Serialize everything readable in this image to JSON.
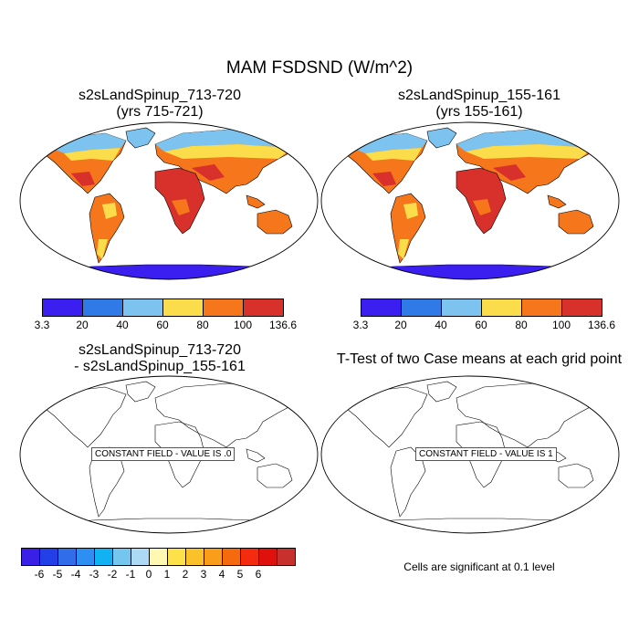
{
  "figure": {
    "title": "MAM FSDSND (W/m^2)"
  },
  "panels": [
    {
      "title_line1": "s2sLandSpinup_713-720",
      "title_line2": "(yrs 715-721)"
    },
    {
      "title_line1": "s2sLandSpinup_155-161",
      "title_line2": "(yrs 155-161)"
    },
    {
      "title_line1": "s2sLandSpinup_713-720",
      "title_line2": "- s2sLandSpinup_155-161",
      "constant_label": "CONSTANT FIELD - VALUE IS .0"
    },
    {
      "title_line1": "T-Test of two Case means at each grid point",
      "constant_label": "CONSTANT FIELD - VALUE IS 1"
    }
  ],
  "colorbar_main": {
    "colors": [
      "#3b1ef0",
      "#2f7ae6",
      "#7cc3ef",
      "#fbdc4a",
      "#f5761b",
      "#d8302a"
    ],
    "ticks": [
      "3.3",
      "20",
      "40",
      "60",
      "80",
      "100",
      "136.6"
    ]
  },
  "colorbar_diff": {
    "colors": [
      "#3a1fe6",
      "#2340e8",
      "#2f6ee8",
      "#2d8ff2",
      "#10b2f2",
      "#74c6ee",
      "#aed9f5",
      "#fff8b3",
      "#fde14a",
      "#fbc12a",
      "#fa9d1a",
      "#f56a0d",
      "#f52b10",
      "#e0100d",
      "#c8302d"
    ],
    "ticks": [
      "-6",
      "-5",
      "-4",
      "-3",
      "-2",
      "-1",
      "0",
      "1",
      "2",
      "3",
      "4",
      "5",
      "6"
    ]
  },
  "note": "Cells are significant at 0.1 level",
  "map_colors": {
    "ocean": "#ffffff",
    "antarctica": "#3b1ef0",
    "polar": "#7cc3ef",
    "mid_lat": "#fbdc4a",
    "subtropic": "#f5761b",
    "tropic_dry": "#d8302a"
  }
}
